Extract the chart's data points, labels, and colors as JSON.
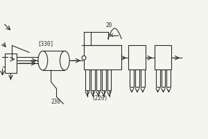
{
  "bg_color": "#f5f5f0",
  "line_color": "#2a2a2a",
  "lw": 0.8,
  "labels": {
    "330": "[330]",
    "230": "230",
    "20": "20",
    "220": "(220)"
  },
  "fig_width": 3.0,
  "fig_height": 2.0
}
